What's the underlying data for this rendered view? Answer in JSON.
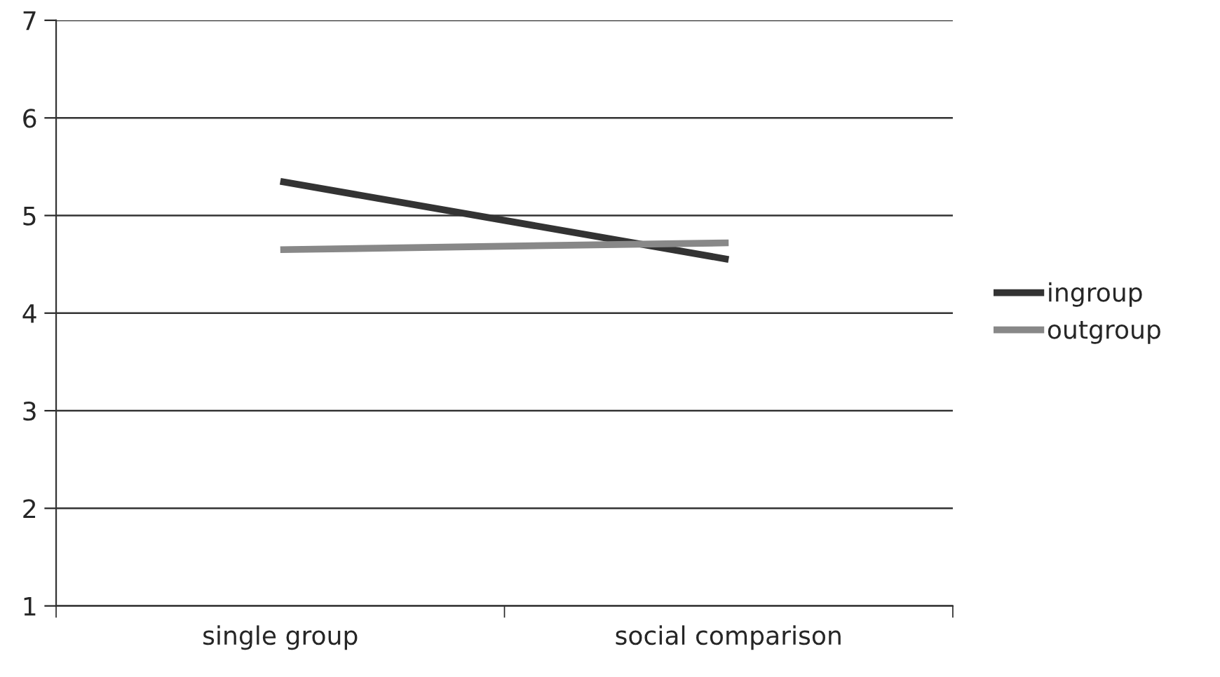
{
  "chart_data": {
    "type": "line",
    "categories": [
      "single group",
      "social comparison"
    ],
    "series": [
      {
        "name": "ingroup",
        "color": "#333333",
        "values": [
          5.35,
          4.55
        ]
      },
      {
        "name": "outgroup",
        "color": "#888888",
        "values": [
          4.65,
          4.72
        ]
      }
    ],
    "ylim": [
      1,
      7
    ],
    "yticks": [
      1,
      2,
      3,
      4,
      5,
      6,
      7
    ],
    "grid": "y",
    "legend": "right",
    "marker": "none",
    "line_style": "solid"
  }
}
